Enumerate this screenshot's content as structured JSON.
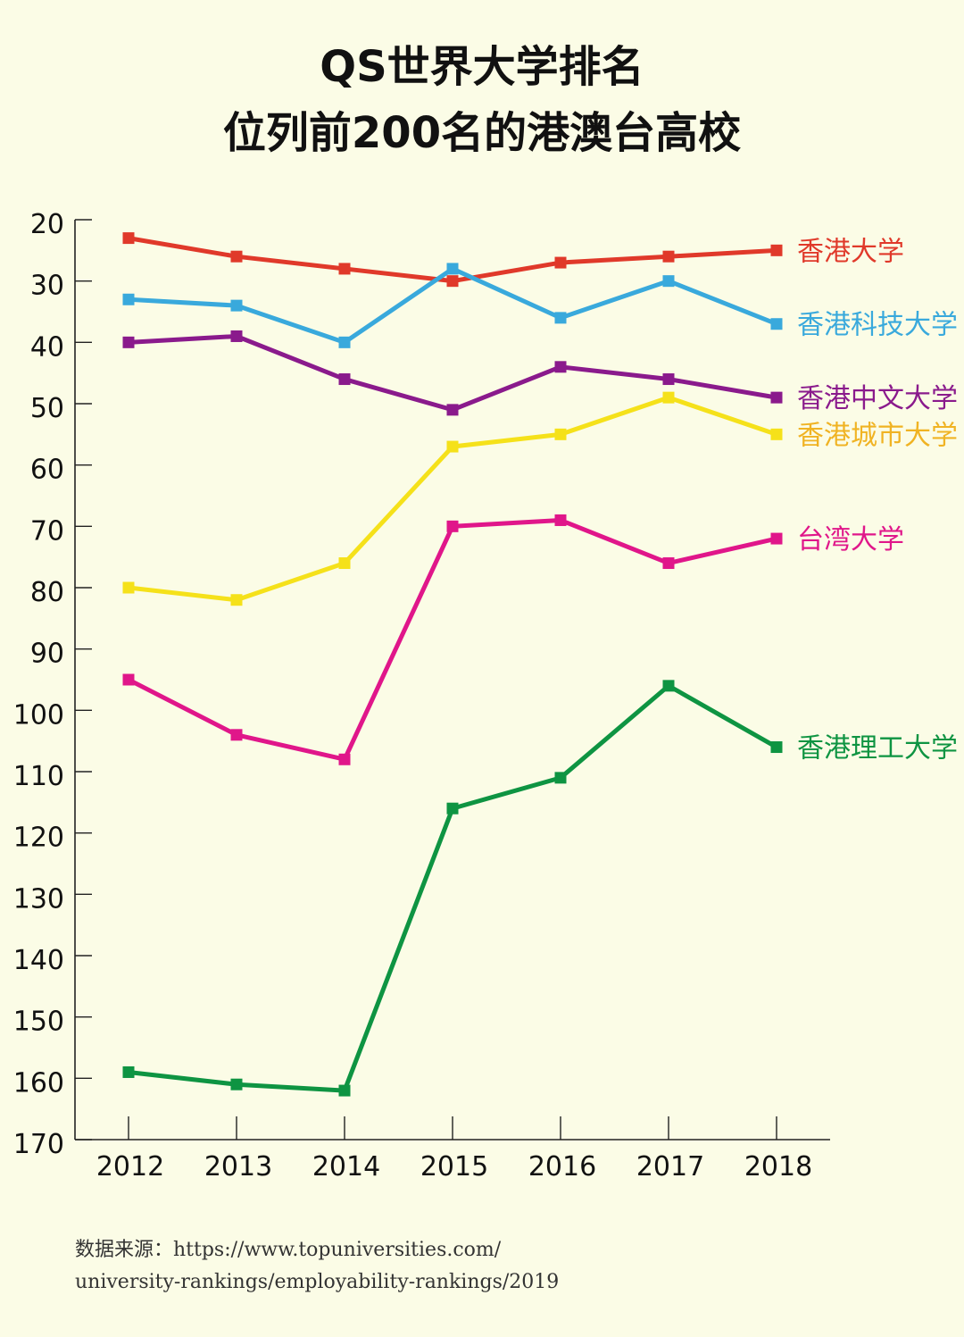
{
  "chart_data": {
    "type": "line",
    "title": [
      "QS世界大学排名",
      "位列前200名的港澳台高校"
    ],
    "x": [
      "2012",
      "2013",
      "2014",
      "2015",
      "2016",
      "2017",
      "2018"
    ],
    "y_ticks": [
      20,
      30,
      40,
      50,
      60,
      70,
      80,
      90,
      100,
      110,
      120,
      130,
      140,
      150,
      160,
      170
    ],
    "ylim": [
      20,
      170
    ],
    "y_inverted": true,
    "grid": false,
    "series": [
      {
        "name": "香港大学",
        "color": "#e0392a",
        "values": [
          23,
          26,
          28,
          30,
          27,
          26,
          25
        ]
      },
      {
        "name": "香港科技大学",
        "color": "#39a9dc",
        "values": [
          33,
          34,
          40,
          28,
          36,
          30,
          37
        ]
      },
      {
        "name": "香港中文大学",
        "color": "#8a1a8c",
        "values": [
          40,
          39,
          46,
          51,
          44,
          46,
          49
        ]
      },
      {
        "name": "香港城市大学",
        "color": "#f5e11a",
        "label_color": "#f0b323",
        "values": [
          80,
          82,
          76,
          57,
          55,
          49,
          55
        ]
      },
      {
        "name": "台湾大学",
        "color": "#e0168a",
        "values": [
          95,
          104,
          108,
          70,
          69,
          76,
          72
        ]
      },
      {
        "name": "香港理工大学",
        "color": "#0e9442",
        "values": [
          159,
          161,
          162,
          116,
          111,
          96,
          106
        ]
      }
    ]
  },
  "source": {
    "line1": "数据来源：https://www.topuniversities.com/",
    "line2": "university-rankings/employability-rankings/2019"
  }
}
